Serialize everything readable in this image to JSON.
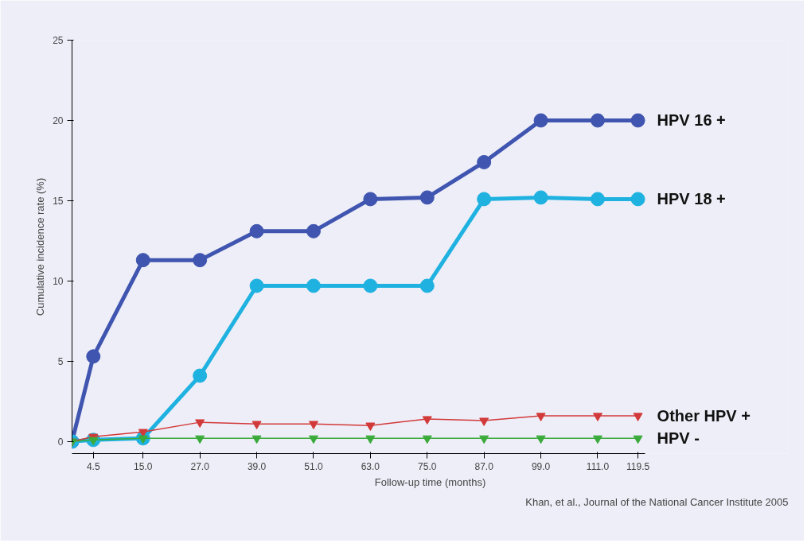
{
  "chart_data": {
    "type": "line",
    "xlabel": "Follow-up time (months)",
    "ylabel": "Cumulative incidence rate (%)",
    "x": [
      0,
      4.5,
      15.0,
      27.0,
      39.0,
      51.0,
      63.0,
      75.0,
      87.0,
      99.0,
      111.0,
      119.5
    ],
    "series": [
      {
        "name": "HPV 16 +",
        "color": "#3f55b0",
        "marker": "circle",
        "values": [
          0,
          5.3,
          11.3,
          11.3,
          13.1,
          13.1,
          15.1,
          15.2,
          17.4,
          20,
          20,
          20
        ]
      },
      {
        "name": "HPV 18 +",
        "color": "#1fb2e0",
        "marker": "circle",
        "values": [
          0,
          0.1,
          0.2,
          4.1,
          9.7,
          9.7,
          9.7,
          9.7,
          15.1,
          15.2,
          15.1,
          15.1
        ]
      },
      {
        "name": "Other HPV +",
        "color": "#d23a3a",
        "marker": "triangle",
        "values": [
          0,
          0.3,
          0.6,
          1.2,
          1.1,
          1.1,
          1.0,
          1.4,
          1.3,
          1.6,
          1.6,
          1.6
        ]
      },
      {
        "name": "HPV -",
        "color": "#3aaa3a",
        "marker": "triangle",
        "values": [
          0,
          0.1,
          0.2,
          0.2,
          0.2,
          0.2,
          0.2,
          0.2,
          0.2,
          0.2,
          0.2,
          0.2
        ]
      }
    ],
    "xlim": [
      0,
      121
    ],
    "xticks": [
      4.5,
      {
        "value": 15,
        "label": "15.0"
      },
      {
        "value": 27,
        "label": "27.0"
      },
      {
        "value": 39,
        "label": "39.0"
      },
      {
        "value": 51,
        "label": "51.0"
      },
      {
        "value": 63,
        "label": "63.0"
      },
      {
        "value": 75,
        "label": "75.0"
      },
      {
        "value": 87,
        "label": "87.0"
      },
      {
        "value": 99,
        "label": "99.0"
      },
      {
        "value": 111,
        "label": "111.0"
      },
      119.5
    ],
    "ylim": [
      0,
      25
    ],
    "yticks": [
      0,
      5,
      10,
      15,
      20,
      25
    ],
    "grid": false,
    "legend": false,
    "annotations": [
      "Khan, et al., Journal of the National Cancer Institute 2005"
    ]
  }
}
